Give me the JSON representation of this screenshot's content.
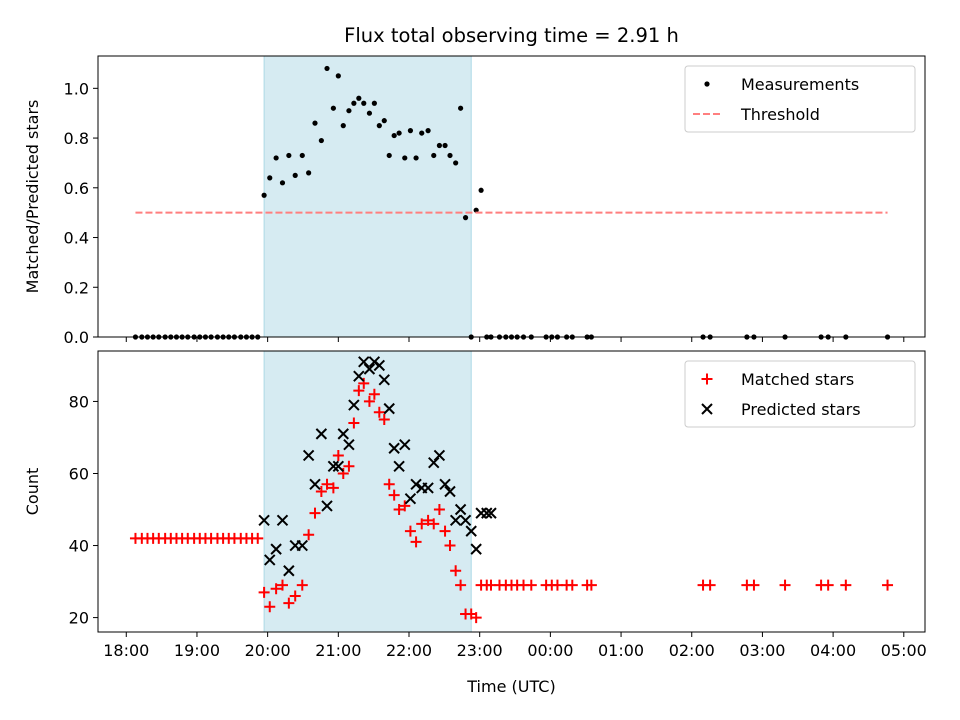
{
  "chart_data": [
    {
      "type": "scatter",
      "title": "Flux total observing time = 2.91 h",
      "ylabel": "Matched/Predicted stars",
      "xlabel": "",
      "ylim": [
        0,
        1.13
      ],
      "yticks": [
        0.0,
        0.2,
        0.4,
        0.6,
        0.8,
        1.0
      ],
      "ytick_labels": [
        "0.0",
        "0.2",
        "0.4",
        "0.6",
        "0.8",
        "1.0"
      ],
      "x_unit": "hours since 18:00 UTC",
      "xlim": [
        -0.4,
        11.3
      ],
      "shaded_span": [
        1.95,
        4.88
      ],
      "shade_color": "#add8e6",
      "legend_position": "upper right",
      "series": [
        {
          "name": "Measurements",
          "marker": "dot",
          "color": "#000000",
          "x": [
            0.13,
            0.22,
            0.3,
            0.38,
            0.46,
            0.55,
            0.63,
            0.71,
            0.79,
            0.87,
            0.96,
            1.04,
            1.12,
            1.2,
            1.29,
            1.37,
            1.45,
            1.53,
            1.62,
            1.7,
            1.78,
            1.86,
            1.95,
            2.03,
            2.12,
            2.21,
            2.3,
            2.39,
            2.49,
            2.58,
            2.67,
            2.76,
            2.84,
            2.93,
            3.0,
            3.07,
            3.15,
            3.22,
            3.29,
            3.36,
            3.44,
            3.51,
            3.58,
            3.65,
            3.72,
            3.79,
            3.86,
            3.94,
            4.02,
            4.1,
            4.18,
            4.27,
            4.35,
            4.43,
            4.51,
            4.58,
            4.66,
            4.73,
            4.8,
            4.88,
            4.95,
            5.02,
            5.1,
            5.16,
            5.28,
            5.37,
            5.45,
            5.53,
            5.62,
            5.73,
            5.94,
            6.02,
            6.1,
            6.23,
            6.31,
            6.52,
            6.58,
            8.16,
            8.26,
            8.78,
            8.88,
            9.32,
            9.83,
            9.93,
            10.18,
            10.77
          ],
          "y": [
            0,
            0,
            0,
            0,
            0,
            0,
            0,
            0,
            0,
            0,
            0,
            0,
            0,
            0,
            0,
            0,
            0,
            0,
            0,
            0,
            0,
            0,
            0.57,
            0.64,
            0.72,
            0.62,
            0.73,
            0.65,
            0.73,
            0.66,
            0.86,
            0.79,
            1.08,
            0.92,
            1.05,
            0.85,
            0.91,
            0.94,
            0.96,
            0.94,
            0.9,
            0.94,
            0.85,
            0.87,
            0.73,
            0.81,
            0.82,
            0.72,
            0.83,
            0.72,
            0.82,
            0.83,
            0.73,
            0.77,
            0.77,
            0.73,
            0.7,
            0.92,
            0.48,
            0,
            0.51,
            0.59,
            0,
            0,
            0,
            0,
            0,
            0,
            0,
            0,
            0,
            0,
            0,
            0,
            0,
            0,
            0,
            0,
            0,
            0,
            0,
            0,
            0,
            0,
            0,
            0
          ]
        },
        {
          "name": "Threshold",
          "marker": "dashed-line",
          "color": "#ff7f7f",
          "x": [
            0.13,
            10.77
          ],
          "y": [
            0.5,
            0.5
          ]
        }
      ]
    },
    {
      "type": "scatter",
      "title": "",
      "ylabel": "Count",
      "xlabel": "Time (UTC)",
      "ylim": [
        16,
        94
      ],
      "yticks": [
        20,
        40,
        60,
        80
      ],
      "ytick_labels": [
        "20",
        "40",
        "60",
        "80"
      ],
      "x_unit": "hours since 18:00 UTC",
      "xlim": [
        -0.4,
        11.3
      ],
      "xticks": [
        0,
        1,
        2,
        3,
        4,
        5,
        6,
        7,
        8,
        9,
        10,
        11
      ],
      "xtick_labels": [
        "18:00",
        "19:00",
        "20:00",
        "21:00",
        "22:00",
        "23:00",
        "00:00",
        "01:00",
        "02:00",
        "03:00",
        "04:00",
        "05:00"
      ],
      "shaded_span": [
        1.95,
        4.88
      ],
      "shade_color": "#add8e6",
      "legend_position": "upper right",
      "series": [
        {
          "name": "Matched stars",
          "marker": "plus",
          "color": "#ff0000",
          "x": [
            0.13,
            0.22,
            0.3,
            0.38,
            0.46,
            0.55,
            0.63,
            0.71,
            0.79,
            0.87,
            0.96,
            1.04,
            1.12,
            1.2,
            1.29,
            1.37,
            1.45,
            1.53,
            1.62,
            1.7,
            1.78,
            1.86,
            1.95,
            2.03,
            2.12,
            2.21,
            2.3,
            2.39,
            2.49,
            2.58,
            2.67,
            2.76,
            2.84,
            2.93,
            3.0,
            3.07,
            3.15,
            3.22,
            3.29,
            3.36,
            3.44,
            3.51,
            3.58,
            3.65,
            3.72,
            3.79,
            3.86,
            3.94,
            4.02,
            4.1,
            4.18,
            4.27,
            4.35,
            4.43,
            4.51,
            4.58,
            4.66,
            4.73,
            4.8,
            4.88,
            4.95,
            5.02,
            5.1,
            5.16,
            5.28,
            5.37,
            5.45,
            5.53,
            5.62,
            5.73,
            5.94,
            6.02,
            6.1,
            6.23,
            6.31,
            6.52,
            6.58,
            8.16,
            8.26,
            8.78,
            8.88,
            9.32,
            9.83,
            9.93,
            10.18,
            10.77
          ],
          "y": [
            42,
            42,
            42,
            42,
            42,
            42,
            42,
            42,
            42,
            42,
            42,
            42,
            42,
            42,
            42,
            42,
            42,
            42,
            42,
            42,
            42,
            42,
            27,
            23,
            28,
            29,
            24,
            26,
            29,
            43,
            49,
            55,
            57,
            56,
            65,
            60,
            62,
            74,
            83,
            85,
            80,
            82,
            77,
            75,
            57,
            54,
            50,
            51,
            44,
            41,
            46,
            47,
            46,
            50,
            44,
            40,
            33,
            29,
            21,
            21,
            20,
            29,
            29,
            29,
            29,
            29,
            29,
            29,
            29,
            29,
            29,
            29,
            29,
            29,
            29,
            29,
            29,
            29,
            29,
            29,
            29,
            29,
            29,
            29,
            29,
            29
          ]
        },
        {
          "name": "Predicted stars",
          "marker": "x",
          "color": "#000000",
          "x": [
            1.95,
            2.03,
            2.12,
            2.21,
            2.3,
            2.39,
            2.49,
            2.58,
            2.67,
            2.76,
            2.84,
            2.93,
            3.0,
            3.07,
            3.15,
            3.22,
            3.29,
            3.36,
            3.44,
            3.51,
            3.58,
            3.65,
            3.72,
            3.79,
            3.86,
            3.94,
            4.02,
            4.1,
            4.18,
            4.27,
            4.35,
            4.43,
            4.51,
            4.58,
            4.66,
            4.73,
            4.8,
            4.88,
            4.95,
            5.02,
            5.1,
            5.16
          ],
          "y": [
            47,
            36,
            39,
            47,
            33,
            40,
            40,
            65,
            57,
            71,
            51,
            62,
            62,
            71,
            68,
            79,
            87,
            91,
            89,
            91,
            90,
            86,
            78,
            67,
            62,
            68,
            53,
            57,
            56,
            56,
            63,
            65,
            57,
            55,
            47,
            50,
            47,
            44,
            39,
            49,
            49,
            49
          ]
        }
      ]
    }
  ]
}
